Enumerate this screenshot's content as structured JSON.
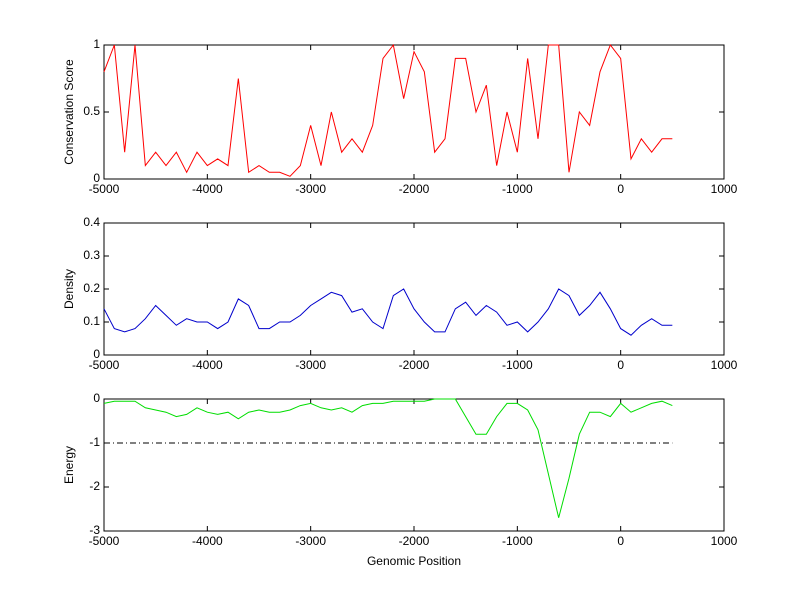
{
  "chart_data": [
    {
      "type": "line",
      "ylabel": "Conservation Score",
      "x": [
        -5000,
        -4900,
        -4800,
        -4700,
        -4600,
        -4500,
        -4400,
        -4300,
        -4200,
        -4100,
        -4000,
        -3900,
        -3800,
        -3700,
        -3600,
        -3500,
        -3400,
        -3300,
        -3200,
        -3100,
        -3000,
        -2900,
        -2800,
        -2700,
        -2600,
        -2500,
        -2400,
        -2300,
        -2200,
        -2100,
        -2000,
        -1900,
        -1800,
        -1700,
        -1600,
        -1500,
        -1400,
        -1300,
        -1200,
        -1100,
        -1000,
        -900,
        -800,
        -700,
        -600,
        -500,
        -400,
        -300,
        -200,
        -100,
        0,
        100,
        200,
        300,
        400,
        500
      ],
      "values": [
        0.8,
        1,
        0.2,
        1,
        0.1,
        0.2,
        0.1,
        0.2,
        0.05,
        0.2,
        0.1,
        0.15,
        0.1,
        0.75,
        0.05,
        0.1,
        0.05,
        0.05,
        0.02,
        0.1,
        0.4,
        0.1,
        0.5,
        0.2,
        0.3,
        0.2,
        0.4,
        0.9,
        1,
        0.6,
        0.95,
        0.8,
        0.2,
        0.3,
        0.9,
        0.9,
        0.5,
        0.7,
        0.1,
        0.5,
        0.2,
        0.9,
        0.3,
        1,
        1,
        0.05,
        0.5,
        0.4,
        0.8,
        1,
        0.9,
        0.15,
        0.3,
        0.2,
        0.3,
        0.3
      ],
      "color": "#ff0000",
      "xlim": [
        -5000,
        1000
      ],
      "xticks": [
        -5000,
        -4000,
        -3000,
        -2000,
        -1000,
        0,
        1000
      ],
      "ylim": [
        0,
        1
      ],
      "yticks": [
        0,
        0.5,
        1
      ]
    },
    {
      "type": "line",
      "ylabel": "Density",
      "x": [
        -5000,
        -4900,
        -4800,
        -4700,
        -4600,
        -4500,
        -4400,
        -4300,
        -4200,
        -4100,
        -4000,
        -3900,
        -3800,
        -3700,
        -3600,
        -3500,
        -3400,
        -3300,
        -3200,
        -3100,
        -3000,
        -2900,
        -2800,
        -2700,
        -2600,
        -2500,
        -2400,
        -2300,
        -2200,
        -2100,
        -2000,
        -1900,
        -1800,
        -1700,
        -1600,
        -1500,
        -1400,
        -1300,
        -1200,
        -1100,
        -1000,
        -900,
        -800,
        -700,
        -600,
        -500,
        -400,
        -300,
        -200,
        -100,
        0,
        100,
        200,
        300,
        400,
        500
      ],
      "values": [
        0.14,
        0.08,
        0.07,
        0.08,
        0.11,
        0.15,
        0.12,
        0.09,
        0.11,
        0.1,
        0.1,
        0.08,
        0.1,
        0.17,
        0.15,
        0.08,
        0.08,
        0.1,
        0.1,
        0.12,
        0.15,
        0.17,
        0.19,
        0.18,
        0.13,
        0.14,
        0.1,
        0.08,
        0.18,
        0.2,
        0.14,
        0.1,
        0.07,
        0.07,
        0.14,
        0.16,
        0.12,
        0.15,
        0.13,
        0.09,
        0.1,
        0.07,
        0.1,
        0.14,
        0.2,
        0.18,
        0.12,
        0.15,
        0.19,
        0.14,
        0.08,
        0.06,
        0.09,
        0.11,
        0.09,
        0.09
      ],
      "color": "#0000cc",
      "xlim": [
        -5000,
        1000
      ],
      "xticks": [
        -5000,
        -4000,
        -3000,
        -2000,
        -1000,
        0,
        1000
      ],
      "ylim": [
        0,
        0.4
      ],
      "yticks": [
        0,
        0.1,
        0.2,
        0.3,
        0.4
      ]
    },
    {
      "type": "line",
      "ylabel": "Energy",
      "xlabel": "Genomic Position",
      "x": [
        -5000,
        -4900,
        -4800,
        -4700,
        -4600,
        -4500,
        -4400,
        -4300,
        -4200,
        -4100,
        -4000,
        -3900,
        -3800,
        -3700,
        -3600,
        -3500,
        -3400,
        -3300,
        -3200,
        -3100,
        -3000,
        -2900,
        -2800,
        -2700,
        -2600,
        -2500,
        -2400,
        -2300,
        -2200,
        -2100,
        -2000,
        -1900,
        -1800,
        -1700,
        -1600,
        -1500,
        -1400,
        -1300,
        -1200,
        -1100,
        -1000,
        -900,
        -800,
        -700,
        -600,
        -500,
        -400,
        -300,
        -200,
        -100,
        0,
        100,
        200,
        300,
        400,
        500
      ],
      "values": [
        -0.1,
        -0.05,
        -0.05,
        -0.05,
        -0.2,
        -0.25,
        -0.3,
        -0.4,
        -0.35,
        -0.2,
        -0.3,
        -0.35,
        -0.3,
        -0.45,
        -0.3,
        -0.25,
        -0.3,
        -0.3,
        -0.25,
        -0.15,
        -0.1,
        -0.2,
        -0.25,
        -0.2,
        -0.3,
        -0.15,
        -0.1,
        -0.1,
        -0.05,
        -0.05,
        -0.05,
        -0.05,
        0,
        0,
        0,
        -0.4,
        -0.8,
        -0.8,
        -0.4,
        -0.1,
        -0.1,
        -0.25,
        -0.7,
        -1.7,
        -2.7,
        -1.8,
        -0.8,
        -0.3,
        -0.3,
        -0.4,
        -0.1,
        -0.3,
        -0.2,
        -0.1,
        -0.05,
        -0.15
      ],
      "color": "#00dd00",
      "hline": -1,
      "xlim": [
        -5000,
        1000
      ],
      "xticks": [
        -5000,
        -4000,
        -3000,
        -2000,
        -1000,
        0,
        1000
      ],
      "ylim": [
        -3,
        0
      ],
      "yticks": [
        -3,
        -2,
        -1,
        0
      ]
    }
  ]
}
